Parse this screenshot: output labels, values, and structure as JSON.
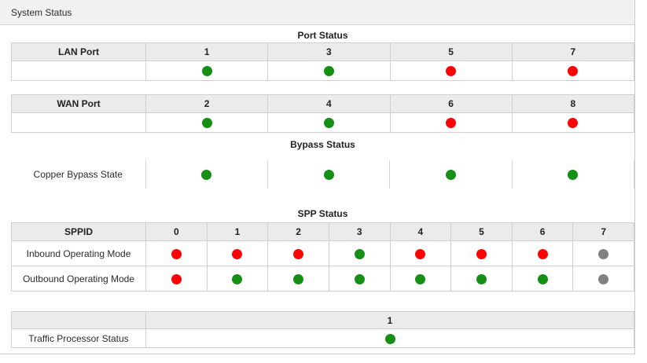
{
  "header": {
    "title": "System Status"
  },
  "colors": {
    "green": "#168f16",
    "red": "#fa0505",
    "gray": "#828282"
  },
  "sections": {
    "port": {
      "title": "Port Status",
      "lan": {
        "label": "LAN Port",
        "columns": [
          "1",
          "3",
          "5",
          "7"
        ],
        "statuses": [
          "green",
          "green",
          "red",
          "red"
        ]
      },
      "wan": {
        "label": "WAN Port",
        "columns": [
          "2",
          "4",
          "6",
          "8"
        ],
        "statuses": [
          "green",
          "green",
          "red",
          "red"
        ]
      }
    },
    "bypass": {
      "title": "Bypass Status",
      "copper": {
        "label": "Copper Bypass State",
        "statuses": [
          "green",
          "green",
          "green",
          "green"
        ]
      }
    },
    "spp": {
      "title": "SPP Status",
      "id_header": "SPPID",
      "columns": [
        "0",
        "1",
        "2",
        "3",
        "4",
        "5",
        "6",
        "7"
      ],
      "rows": [
        {
          "label": "Inbound Operating Mode",
          "statuses": [
            "red",
            "red",
            "red",
            "green",
            "red",
            "red",
            "red",
            "gray"
          ]
        },
        {
          "label": "Outbound Operating Mode",
          "statuses": [
            "red",
            "green",
            "green",
            "green",
            "green",
            "green",
            "green",
            "gray"
          ]
        }
      ]
    },
    "traffic": {
      "columns": [
        "1"
      ],
      "label": "Traffic Processor Status",
      "statuses": [
        "green"
      ]
    }
  }
}
